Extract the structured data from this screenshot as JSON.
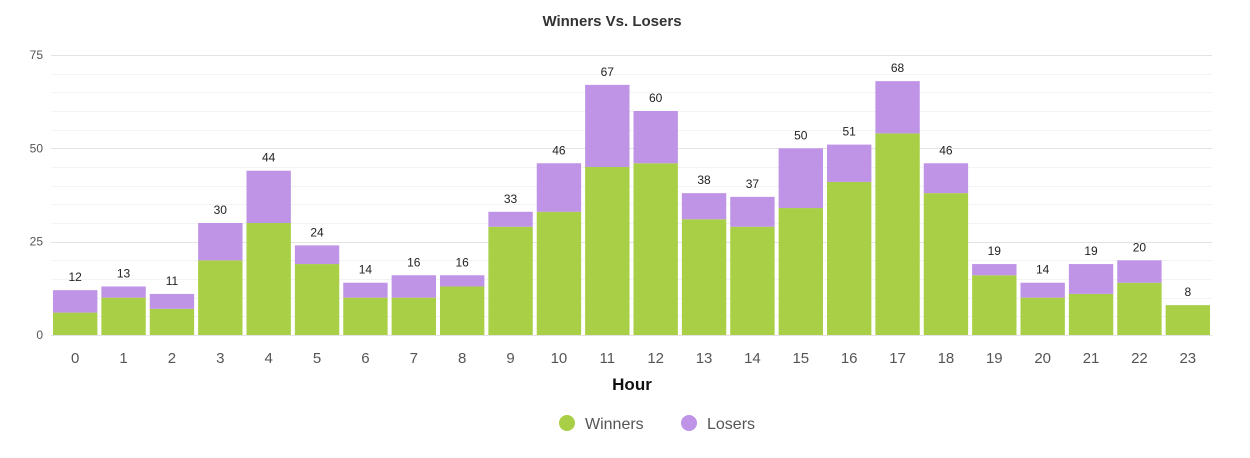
{
  "chart_data": {
    "type": "bar",
    "stacked": true,
    "title": "Winners Vs. Losers",
    "xlabel": "Hour",
    "ylabel": "",
    "ylim": [
      0,
      75
    ],
    "yticks": [
      0,
      25,
      50,
      75
    ],
    "grid": true,
    "legend_position": "bottom-center",
    "categories": [
      "0",
      "1",
      "2",
      "3",
      "4",
      "5",
      "6",
      "7",
      "8",
      "9",
      "10",
      "11",
      "12",
      "13",
      "14",
      "15",
      "16",
      "17",
      "18",
      "19",
      "20",
      "21",
      "22",
      "23"
    ],
    "series": [
      {
        "name": "Winners",
        "color": "#a8cf45",
        "values": [
          6,
          10,
          7,
          20,
          30,
          19,
          10,
          10,
          13,
          29,
          33,
          45,
          46,
          31,
          29,
          34,
          41,
          54,
          38,
          16,
          10,
          11,
          14,
          8
        ]
      },
      {
        "name": "Losers",
        "color": "#bf93e6",
        "values": [
          6,
          3,
          4,
          10,
          14,
          5,
          4,
          6,
          3,
          4,
          13,
          22,
          14,
          7,
          8,
          16,
          10,
          14,
          8,
          3,
          4,
          8,
          6,
          0
        ]
      }
    ],
    "totals": [
      12,
      13,
      11,
      30,
      44,
      24,
      14,
      16,
      16,
      33,
      46,
      67,
      60,
      38,
      37,
      50,
      51,
      68,
      46,
      19,
      14,
      19,
      20,
      8
    ]
  }
}
